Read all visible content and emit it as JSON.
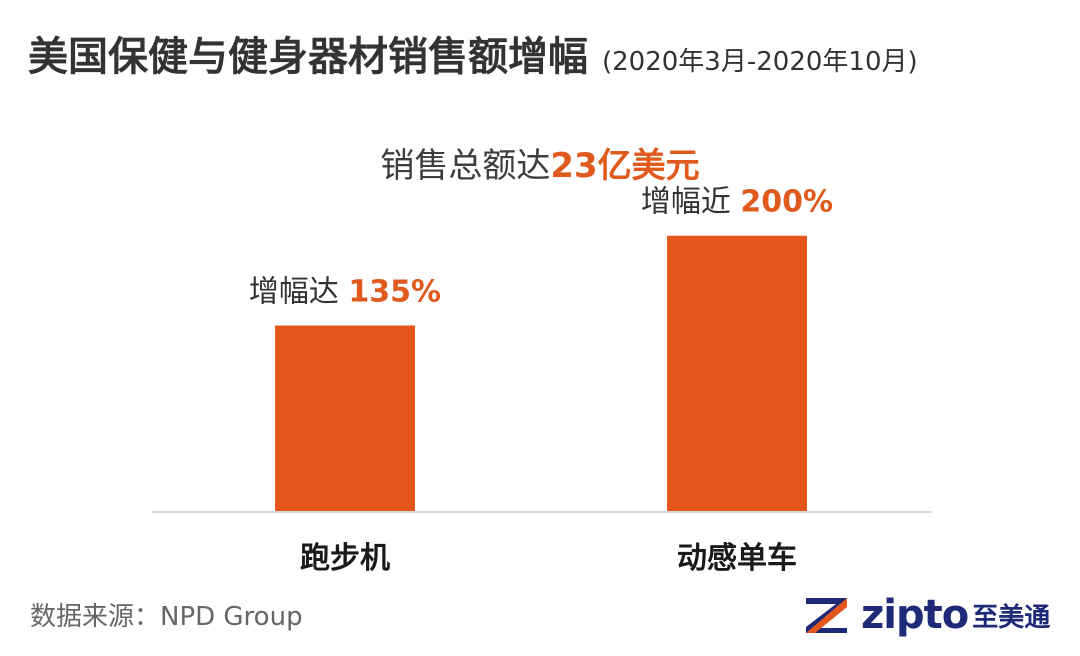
{
  "title": "美国保健与健身器材销售额增幅",
  "title_period": "(2020年3月-2020年10月)",
  "subtitle": {
    "prefix": "销售总额达",
    "highlight": "23亿美元"
  },
  "colors": {
    "bar": "#e5561c",
    "accent_text": "#e05a1e",
    "label_text": "#333333",
    "baseline": "#d9d9d9"
  },
  "chart_data": {
    "type": "bar",
    "categories": [
      "跑步机",
      "动感单车"
    ],
    "values": [
      135,
      200
    ],
    "value_labels": [
      {
        "prefix": "增幅达 ",
        "value": "135%"
      },
      {
        "prefix": "增幅近 ",
        "value": "200%"
      }
    ],
    "ylim": [
      0,
      240
    ],
    "grid": false
  },
  "footer": {
    "source": "数据来源：NPD Group"
  },
  "logo": {
    "icon": "zipto-z-logo-icon",
    "word": "zipto",
    "cn": "至美通"
  }
}
